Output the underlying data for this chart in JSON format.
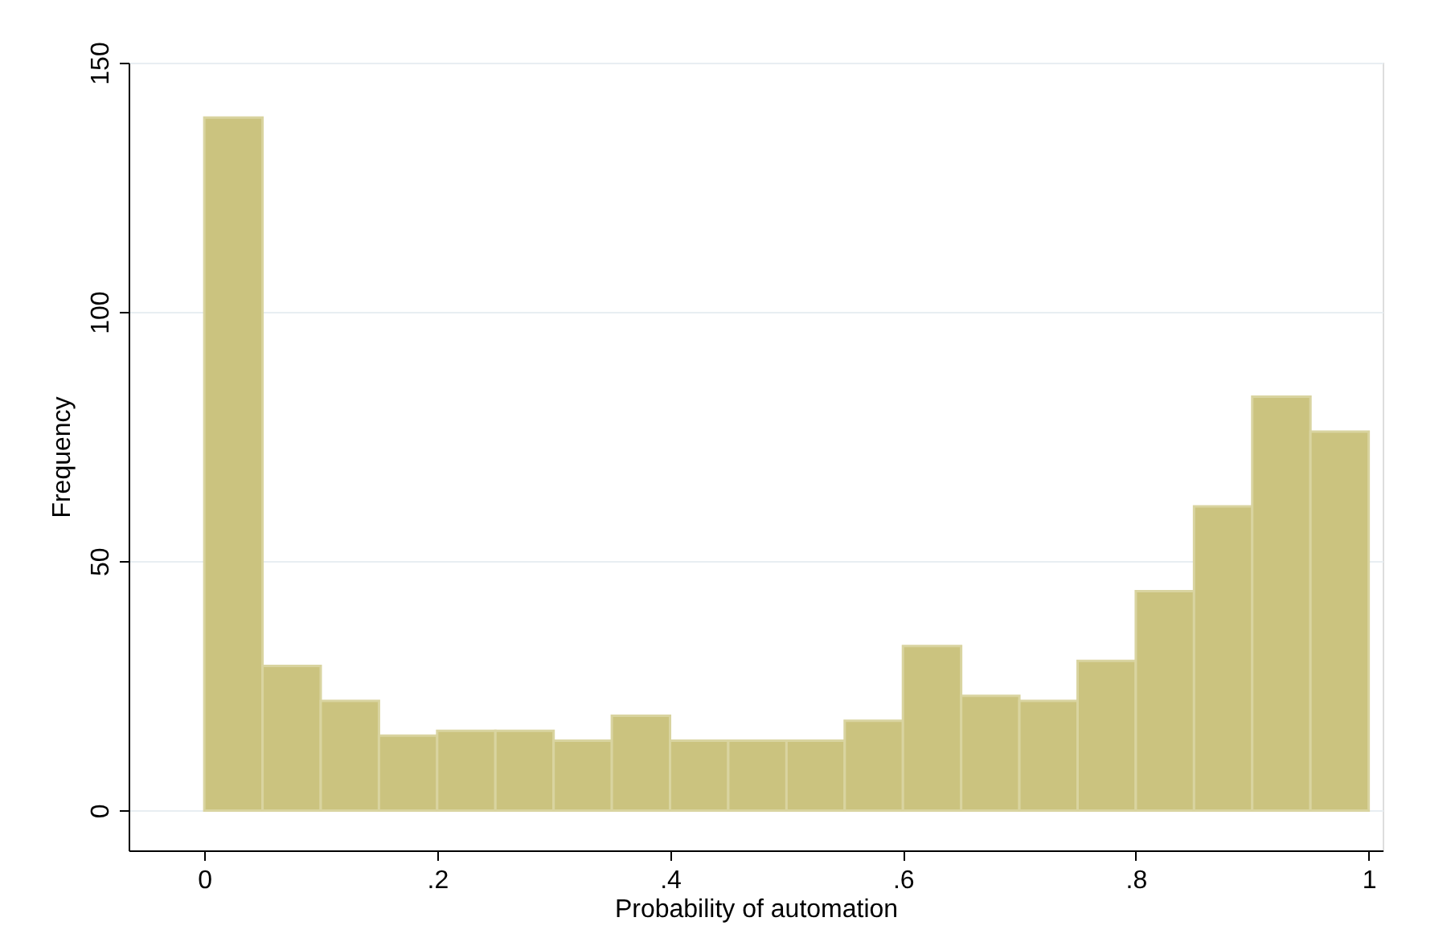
{
  "chart_data": {
    "type": "histogram",
    "xlabel": "Probability of automation",
    "ylabel": "Frequency",
    "bins": [
      0,
      0.05,
      0.1,
      0.15,
      0.2,
      0.25,
      0.3,
      0.35,
      0.4,
      0.45,
      0.5,
      0.55,
      0.6,
      0.65,
      0.7,
      0.75,
      0.8,
      0.85,
      0.9,
      0.95,
      1
    ],
    "values": [
      139,
      29,
      22,
      15,
      16,
      16,
      14,
      19,
      14,
      14,
      14,
      18,
      33,
      23,
      22,
      30,
      44,
      61,
      83,
      76
    ],
    "color": "#cbc37f",
    "xlim": [
      -0.065,
      1.012
    ],
    "xticks": [
      0,
      {
        "value": 0.2,
        "label": ".2"
      },
      {
        "value": 0.4,
        "label": ".4"
      },
      {
        "value": 0.6,
        "label": ".6"
      },
      {
        "value": 0.8,
        "label": ".8"
      },
      1
    ],
    "ylim": [
      -8,
      150
    ],
    "yticks": [
      0,
      50,
      100,
      150
    ],
    "grid": "y"
  }
}
